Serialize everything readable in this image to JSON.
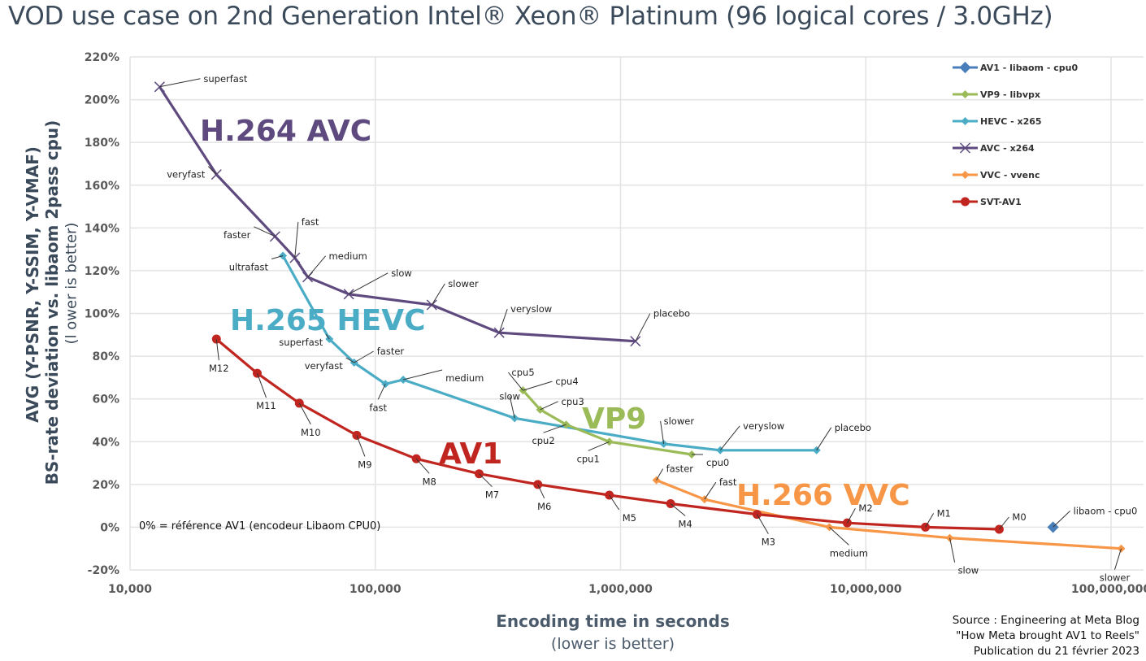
{
  "title": "VOD use case on 2nd Generation Intel® Xeon® Platinum (96 logical cores / 3.0GHz)",
  "y_axis_title": [
    "AVG (Y-PSNR, Y-SSIM, Y-VMAF)",
    "BS-rate deviation vs. libaom 2pass cpu)",
    "(l ower is better)"
  ],
  "x_axis_title": [
    "Encoding time in seconds",
    "(lower is better)"
  ],
  "note": "0% = référence AV1 (encodeur Libaom CPU0)",
  "source": [
    "Source : Engineering at Meta Blog",
    "\"How Meta brought AV1 to Reels\"",
    "Publication du 21 février 2023"
  ],
  "chart_data": {
    "type": "scatter",
    "title": "VOD use case on 2nd Generation Intel® Xeon® Platinum (96 logical cores / 3.0GHz)",
    "xlabel": "Encoding time in seconds (lower is better)",
    "ylabel": "AVG (Y-PSNR, Y-SSIM, Y-VMAF) BS-rate deviation vs. libaom 2pass cpu) (lower is better)",
    "x_scale": "log",
    "xlim": [
      10000,
      100000000
    ],
    "ylim": [
      -20,
      220
    ],
    "x_ticks": [
      "10,000",
      "100,000",
      "1,000,000",
      "10,000,000",
      "100,000,000"
    ],
    "x_tick_values": [
      10000,
      100000,
      1000000,
      10000000,
      100000000
    ],
    "y_ticks": [
      "220%",
      "200%",
      "180%",
      "160%",
      "140%",
      "120%",
      "100%",
      "80%",
      "60%",
      "40%",
      "20%",
      "0%",
      "-20%"
    ],
    "y_tick_values": [
      220,
      200,
      180,
      160,
      140,
      120,
      100,
      80,
      60,
      40,
      20,
      0,
      -20
    ],
    "grid": true,
    "legend_position": "top-right",
    "series": [
      {
        "name": "AV1 - libaom - cpu0",
        "color": "#4a7ebb",
        "marker": "square",
        "big_label": "",
        "points": [
          {
            "label": "libaom - cpu0",
            "x": 58000000,
            "y": 0
          }
        ]
      },
      {
        "name": "VP9 - libvpx",
        "color": "#9bbb59",
        "marker": "diamond",
        "big_label": "VP9",
        "points": [
          {
            "label": "cpu5",
            "x": 400000,
            "y": 64
          },
          {
            "label": "cpu4",
            "x": 400000,
            "y": 64
          },
          {
            "label": "cpu3",
            "x": 470000,
            "y": 55
          },
          {
            "label": "cpu2",
            "x": 600000,
            "y": 48
          },
          {
            "label": "cpu1",
            "x": 900000,
            "y": 40
          },
          {
            "label": "cpu0",
            "x": 1950000,
            "y": 34
          }
        ]
      },
      {
        "name": "HEVC - x265",
        "color": "#4bacc6",
        "marker": "diamond",
        "big_label": "H.265  HEVC",
        "points": [
          {
            "label": "ultrafast",
            "x": 42000,
            "y": 127
          },
          {
            "label": "superfast",
            "x": 65000,
            "y": 88
          },
          {
            "label": "veryfast",
            "x": 82000,
            "y": 77
          },
          {
            "label": "faster",
            "x": 82000,
            "y": 77
          },
          {
            "label": "fast",
            "x": 110000,
            "y": 67
          },
          {
            "label": "medium",
            "x": 130000,
            "y": 69
          },
          {
            "label": "slow",
            "x": 370000,
            "y": 51
          },
          {
            "label": "slower",
            "x": 1500000,
            "y": 39
          },
          {
            "label": "veryslow",
            "x": 2550000,
            "y": 36
          },
          {
            "label": "placebo",
            "x": 6300000,
            "y": 36
          }
        ]
      },
      {
        "name": "AVC - x264",
        "color": "#5e4a7e",
        "marker": "x",
        "big_label": "H.264  AVC",
        "points": [
          {
            "label": "superfast",
            "x": 13200,
            "y": 206
          },
          {
            "label": "veryfast",
            "x": 22500,
            "y": 165
          },
          {
            "label": "faster",
            "x": 39000,
            "y": 136
          },
          {
            "label": "fast",
            "x": 47000,
            "y": 126
          },
          {
            "label": "medium",
            "x": 53000,
            "y": 117
          },
          {
            "label": "slow",
            "x": 78000,
            "y": 109
          },
          {
            "label": "slower",
            "x": 170000,
            "y": 104
          },
          {
            "label": "veryslow",
            "x": 320000,
            "y": 91
          },
          {
            "label": "placebo",
            "x": 1150000,
            "y": 87
          }
        ]
      },
      {
        "name": "VVC - vvenc",
        "color": "#f79646",
        "marker": "diamond",
        "big_label": "H.266  VVC",
        "points": [
          {
            "label": "faster",
            "x": 1400000,
            "y": 22
          },
          {
            "label": "fast",
            "x": 2200000,
            "y": 13
          },
          {
            "label": "medium",
            "x": 7100000,
            "y": 0
          },
          {
            "label": "slow",
            "x": 22000000,
            "y": -5
          },
          {
            "label": "slower",
            "x": 110000000,
            "y": -10
          }
        ]
      },
      {
        "name": "SVT-AV1",
        "color": "#c0261f",
        "marker": "circle",
        "big_label": "AV1",
        "points": [
          {
            "label": "M12",
            "x": 22500,
            "y": 88
          },
          {
            "label": "M11",
            "x": 33000,
            "y": 72
          },
          {
            "label": "M10",
            "x": 49000,
            "y": 58
          },
          {
            "label": "M9",
            "x": 84000,
            "y": 43
          },
          {
            "label": "M8",
            "x": 147000,
            "y": 32
          },
          {
            "label": "M7",
            "x": 265000,
            "y": 25
          },
          {
            "label": "M6",
            "x": 460000,
            "y": 20
          },
          {
            "label": "M5",
            "x": 900000,
            "y": 15
          },
          {
            "label": "M4",
            "x": 1600000,
            "y": 11
          },
          {
            "label": "M3",
            "x": 3600000,
            "y": 6
          },
          {
            "label": "M2",
            "x": 8400000,
            "y": 2
          },
          {
            "label": "M1",
            "x": 17500000,
            "y": 0
          },
          {
            "label": "M0",
            "x": 35000000,
            "y": -1
          }
        ]
      }
    ]
  }
}
